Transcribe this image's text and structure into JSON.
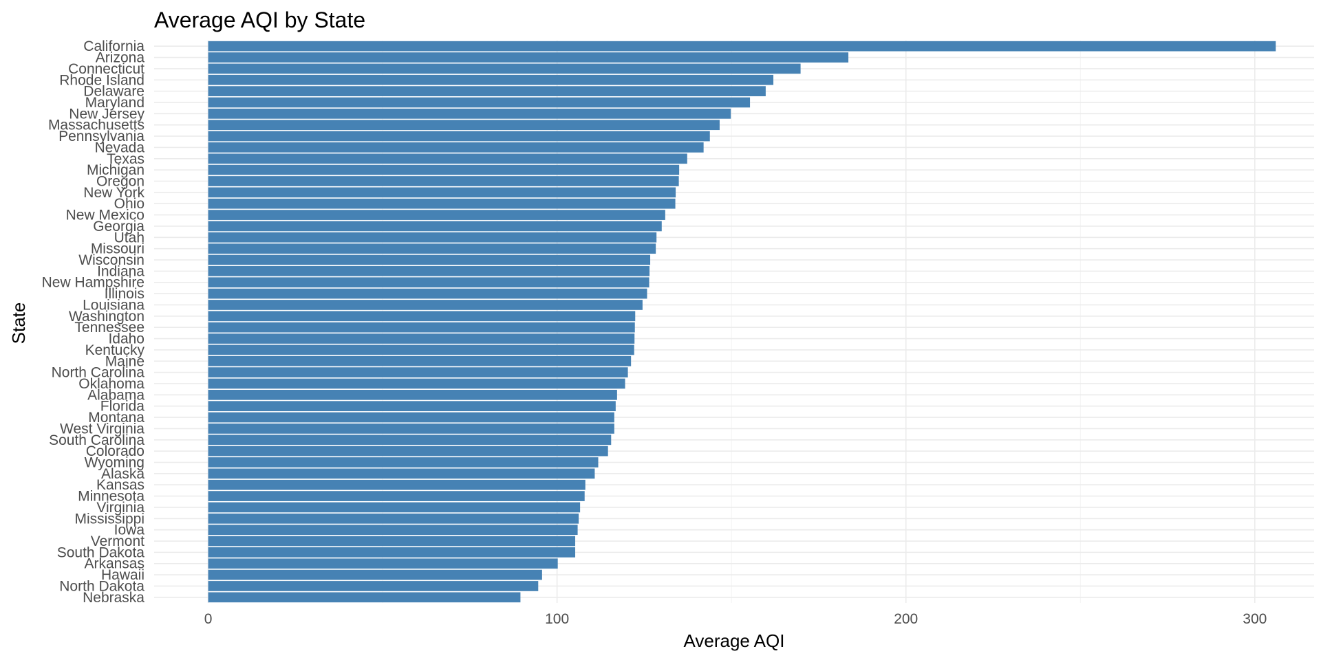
{
  "chart_data": {
    "type": "bar",
    "orientation": "horizontal",
    "title": "Average AQI by State",
    "xlabel": "Average AQI",
    "ylabel": "State",
    "xlim": [
      -15.5,
      317
    ],
    "x_ticks": [
      0,
      100,
      200,
      300
    ],
    "grid": true,
    "bar_color": "#4682b4",
    "categories": [
      "California",
      "Arizona",
      "Connecticut",
      "Rhode Island",
      "Delaware",
      "Maryland",
      "New Jersey",
      "Massachusetts",
      "Pennsylvania",
      "Nevada",
      "Texas",
      "Michigan",
      "Oregon",
      "New York",
      "Ohio",
      "New Mexico",
      "Georgia",
      "Utah",
      "Missouri",
      "Wisconsin",
      "Indiana",
      "New Hampshire",
      "Illinois",
      "Louisiana",
      "Washington",
      "Tennessee",
      "Idaho",
      "Kentucky",
      "Maine",
      "North Carolina",
      "Oklahoma",
      "Alabama",
      "Florida",
      "Montana",
      "West Virginia",
      "South Carolina",
      "Colorado",
      "Wyoming",
      "Alaska",
      "Kansas",
      "Minnesota",
      "Virginia",
      "Mississippi",
      "Iowa",
      "Vermont",
      "South Dakota",
      "Arkansas",
      "Hawaii",
      "North Dakota",
      "Nebraska"
    ],
    "values": [
      306,
      183.5,
      169.8,
      162,
      159.8,
      155.3,
      149.8,
      146.6,
      143.8,
      142,
      137.3,
      135,
      134.9,
      134,
      133.9,
      131,
      130,
      128.5,
      128.3,
      126.7,
      126.5,
      126.4,
      125.8,
      124.5,
      122.4,
      122.3,
      122.2,
      122.1,
      121.2,
      120.3,
      119.5,
      117.2,
      116.8,
      116.4,
      116.4,
      115.5,
      114.6,
      111.8,
      110.8,
      108.1,
      107.9,
      106.6,
      106.2,
      105.9,
      105.2,
      105.2,
      100.2,
      95.7,
      94.6,
      89.5
    ]
  }
}
